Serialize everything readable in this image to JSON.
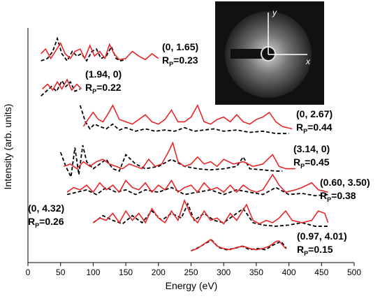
{
  "chart_data": {
    "type": "line",
    "xlabel": "Energy (eV)",
    "ylabel": "Intensity (arb. units)",
    "xlim": [
      0,
      500
    ],
    "xticks": [
      0,
      50,
      100,
      150,
      200,
      250,
      300,
      350,
      400,
      450,
      500
    ],
    "ylim": [
      0,
      100
    ],
    "exp_color": "#e8262a",
    "theory_color": "#000000",
    "inset": {
      "x_label": "x",
      "y_label": "y"
    },
    "curves": [
      {
        "beam": "(0, 1.65)",
        "rfactor": [
          "R",
          "P",
          "=0.23"
        ],
        "exp": {
          "x": [
            20,
            27,
            35,
            42,
            50,
            57,
            65,
            72,
            80,
            87,
            95,
            102,
            110,
            118,
            125,
            132,
            140,
            150,
            160,
            170,
            180,
            190,
            200
          ],
          "values": [
            89,
            91,
            87,
            90,
            93.5,
            89,
            87,
            90,
            91,
            87,
            92.5,
            88,
            90,
            87,
            93,
            89,
            86.5,
            87,
            90,
            88,
            86.5,
            89,
            87
          ]
        },
        "theory": {
          "x": [
            20,
            30,
            38,
            45,
            52,
            60,
            68,
            75,
            82,
            90,
            98,
            105,
            112,
            120,
            128,
            135,
            142,
            150
          ],
          "values": [
            86,
            87,
            90,
            95.5,
            89,
            86,
            90,
            88,
            89,
            86,
            90,
            91,
            87,
            88,
            92,
            87,
            86,
            86.5
          ]
        }
      },
      {
        "beam": "(1.94, 0)",
        "rfactor": [
          "R",
          "P",
          "=0.22"
        ],
        "exp": {
          "x": [
            22,
            30,
            38,
            45,
            52,
            60,
            67,
            75,
            82
          ],
          "values": [
            74,
            76,
            73.5,
            77,
            74,
            78,
            73.5,
            76,
            74
          ]
        },
        "theory": {
          "x": [
            20,
            28,
            36,
            44,
            52,
            58,
            65,
            72,
            80
          ],
          "values": [
            71,
            73,
            75,
            73,
            77.5,
            75,
            77,
            73,
            74
          ]
        }
      },
      {
        "beam": "(0, 2.67)",
        "rfactor": [
          "R",
          "P",
          "=0.44"
        ],
        "exp": {
          "x": [
            85,
            92,
            100,
            108,
            115,
            122,
            130,
            140,
            150,
            160,
            170,
            180,
            190,
            200,
            210,
            220,
            230,
            240,
            250,
            260,
            270,
            280,
            290,
            300,
            310,
            320,
            330,
            340,
            350,
            360,
            370,
            380,
            390,
            405
          ],
          "values": [
            58,
            61,
            64,
            61,
            60,
            63,
            67,
            61,
            60,
            59,
            61,
            63,
            60,
            59,
            61,
            65,
            60,
            60,
            62,
            67,
            60,
            59,
            61,
            62,
            60,
            63,
            60,
            59,
            61,
            62,
            64,
            60,
            58,
            57
          ]
        },
        "theory": {
          "x": [
            80,
            88,
            95,
            102,
            110,
            120,
            130,
            140,
            150,
            165,
            180,
            195,
            210,
            225,
            240,
            255,
            270,
            285,
            300,
            320,
            340,
            360,
            380,
            400
          ],
          "values": [
            67,
            60,
            57,
            59,
            58,
            57,
            59,
            56.5,
            57.5,
            56,
            57,
            56,
            56.5,
            56,
            57.5,
            56,
            56.5,
            57,
            56,
            56.5,
            55.5,
            56,
            55,
            55
          ]
        }
      },
      {
        "beam": "(3.14, 0)",
        "rfactor": [
          "R",
          "P",
          "=0.45"
        ],
        "exp": {
          "x": [
            55,
            65,
            75,
            85,
            95,
            105,
            115,
            125,
            135,
            145,
            155,
            165,
            175,
            185,
            195,
            205,
            215,
            222,
            230,
            240,
            250,
            260,
            270,
            280,
            290,
            300,
            315,
            330,
            345,
            360,
            375,
            385,
            395,
            410
          ],
          "values": [
            41,
            42,
            40,
            43,
            41,
            43,
            44,
            42,
            41,
            40,
            42,
            41,
            40,
            44,
            41,
            42,
            47,
            51,
            43,
            41,
            42,
            45,
            42,
            43,
            41,
            44,
            42,
            43,
            41,
            42,
            46,
            41,
            40,
            40
          ]
        },
        "theory": {
          "x": [
            50,
            58,
            66,
            72,
            78,
            84,
            90,
            100,
            110,
            120,
            130,
            140,
            150,
            165,
            180,
            200,
            220,
            240,
            260,
            280,
            300,
            320,
            330,
            340,
            360,
            380,
            390
          ],
          "values": [
            47,
            41,
            36.5,
            49,
            37.5,
            50,
            43,
            40,
            42,
            44,
            40,
            39,
            46,
            42,
            40,
            41,
            44,
            41,
            40,
            39.5,
            40,
            41,
            45,
            40,
            39.5,
            39,
            39
          ]
        }
      },
      {
        "beam": "(0.60, 3.50)",
        "rfactor": [
          "R",
          "P",
          "=0.38"
        ],
        "exp": {
          "x": [
            60,
            70,
            80,
            90,
            100,
            110,
            120,
            130,
            140,
            150,
            160,
            170,
            180,
            190,
            200,
            210,
            220,
            230,
            240,
            250,
            260,
            270,
            280,
            290,
            300,
            310,
            320,
            330,
            340,
            350,
            360,
            375,
            385,
            395,
            410,
            420,
            435,
            445,
            460
          ],
          "values": [
            30,
            32,
            31,
            33,
            30,
            34,
            31,
            33,
            30,
            35,
            32,
            31,
            34,
            30,
            33,
            31,
            35,
            30,
            32,
            33,
            30,
            34,
            31,
            32,
            30,
            33,
            30,
            33,
            31,
            30,
            31,
            37.5,
            33,
            30,
            31,
            32,
            34,
            31,
            30
          ]
        },
        "theory": {
          "x": [
            60,
            75,
            90,
            105,
            120,
            135,
            150,
            165,
            180,
            200,
            220,
            240,
            260,
            280,
            300,
            320,
            340,
            360,
            380,
            400,
            420,
            440,
            460
          ],
          "values": [
            29,
            30,
            31,
            29,
            32,
            30,
            31,
            29,
            31,
            30,
            32,
            29,
            30,
            31,
            29,
            31,
            30,
            29,
            32,
            29,
            29.5,
            28.5,
            29
          ]
        }
      },
      {
        "beam": "(0, 4.32)",
        "rfactor": [
          "R",
          "P",
          "=0.26"
        ],
        "exp": {
          "x": [
            100,
            110,
            120,
            130,
            140,
            150,
            160,
            170,
            180,
            190,
            200,
            210,
            220,
            230,
            240,
            250,
            260,
            270,
            280,
            290,
            300,
            310,
            320,
            335,
            345,
            355,
            365,
            375,
            385,
            395,
            405,
            420,
            435,
            445,
            455,
            460
          ],
          "values": [
            17,
            19,
            18,
            21,
            17,
            22,
            18,
            21,
            17,
            23,
            19,
            17,
            22,
            18,
            26.5,
            20,
            17,
            22,
            18,
            19,
            16.5,
            21,
            18,
            24.7,
            18,
            16.5,
            18,
            17,
            19,
            22,
            18,
            17,
            18,
            22,
            21,
            17
          ]
        },
        "theory": {
          "x": [
            100,
            115,
            130,
            145,
            160,
            175,
            190,
            205,
            220,
            235,
            245,
            255,
            270,
            285,
            300,
            315,
            330,
            345,
            360,
            380,
            400,
            420,
            440,
            460
          ],
          "values": [
            17,
            20,
            18,
            16.5,
            20,
            17,
            22,
            18,
            21,
            19,
            25,
            18,
            21,
            18,
            17,
            20,
            23,
            17,
            16,
            15.5,
            16,
            17,
            15.5,
            15.5
          ]
        }
      },
      {
        "beam": "(0.97, 4.01)",
        "rfactor": [
          "R",
          "P",
          "=0.15"
        ],
        "exp": {
          "x": [
            250,
            260,
            270,
            280,
            290,
            300,
            310,
            320,
            330,
            340,
            350,
            360,
            370,
            380,
            385,
            395
          ],
          "values": [
            5,
            6,
            8,
            9.8,
            7,
            6,
            5.5,
            6.5,
            7,
            6,
            5.5,
            6,
            7,
            9,
            9.2,
            6
          ]
        },
        "theory": {
          "x": [
            250,
            262,
            274,
            282,
            292,
            304,
            316,
            328,
            340,
            352,
            364,
            376,
            388,
            396
          ],
          "values": [
            5,
            6.5,
            8.5,
            9.5,
            6.5,
            5.5,
            6,
            7,
            5.5,
            6,
            5.5,
            7.5,
            9,
            6
          ]
        }
      }
    ]
  }
}
